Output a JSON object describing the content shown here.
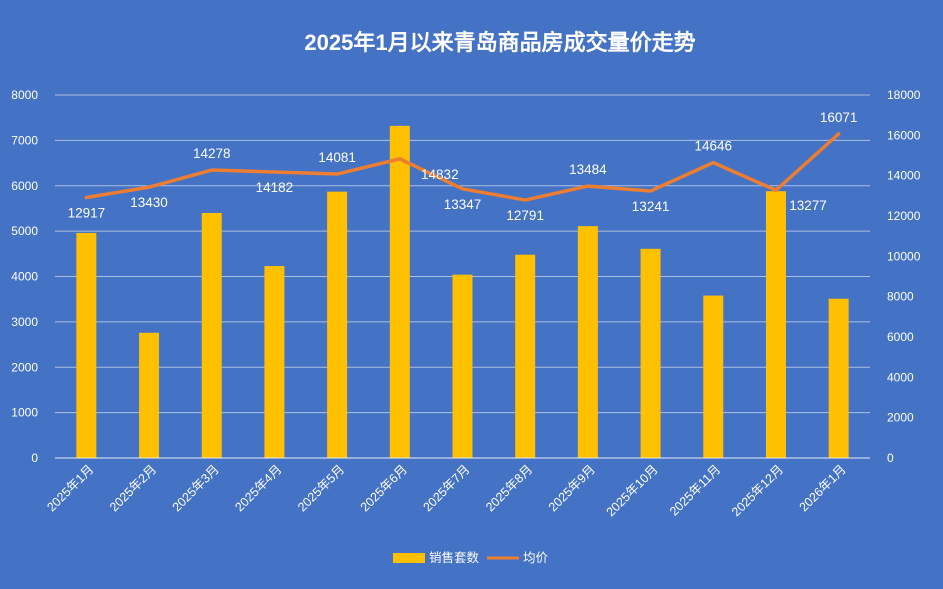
{
  "chart_data": {
    "type": "bar+line",
    "title": "2025年1月以来青岛商品房成交量价走势",
    "categories": [
      "2025年1月",
      "2025年2月",
      "2025年3月",
      "2025年4月",
      "2025年5月",
      "2025年6月",
      "2025年7月",
      "2025年8月",
      "2025年9月",
      "2025年10月",
      "2025年11月",
      "2025年12月",
      "2026年1月"
    ],
    "series": [
      {
        "name": "销售套数",
        "type": "bar",
        "axis": "left",
        "color": "#FFC000",
        "values": [
          4960,
          2760,
          5400,
          4230,
          5870,
          7320,
          4040,
          4480,
          5110,
          4610,
          3580,
          5880,
          3510
        ]
      },
      {
        "name": "均价",
        "type": "line",
        "axis": "right",
        "color": "#ED7D31",
        "values": [
          12917,
          13430,
          14278,
          14182,
          14081,
          14832,
          13347,
          12791,
          13484,
          13241,
          14646,
          13277,
          16071
        ],
        "labels": [
          "12917",
          "13430",
          "14278",
          "14182",
          "14081",
          "14832",
          "13347",
          "12791",
          "13484",
          "13241",
          "14646",
          "13277",
          "16071"
        ]
      }
    ],
    "y_left": {
      "min": 0,
      "max": 8000,
      "step": 1000,
      "ticks": [
        "0",
        "1000",
        "2000",
        "3000",
        "4000",
        "5000",
        "6000",
        "7000",
        "8000"
      ]
    },
    "y_right": {
      "min": 0,
      "max": 18000,
      "step": 2000,
      "ticks": [
        "0",
        "2000",
        "4000",
        "6000",
        "8000",
        "10000",
        "12000",
        "14000",
        "16000",
        "18000"
      ]
    },
    "grid": true,
    "legend_position": "bottom",
    "legend": [
      "销售套数",
      "均价"
    ]
  }
}
